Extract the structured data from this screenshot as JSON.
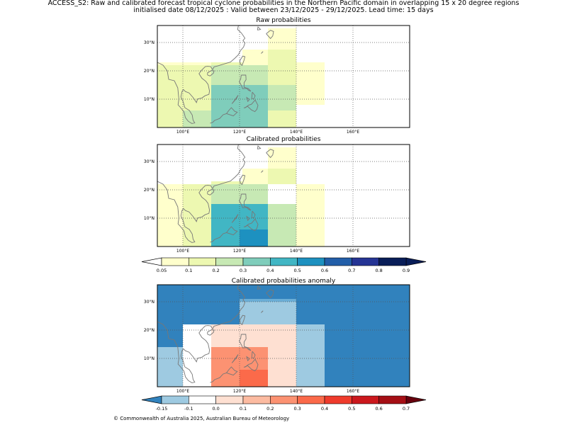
{
  "header": {
    "line1": "ACCESS_S2: Raw and calibrated forecast tropical cyclone probabilities in the Northern Pacific domain in overlapping 15 x 20 degree regions",
    "line2": "initialised date 08/12/2025 :  Valid between 23/12/2025 - 29/12/2025. Lead time: 15 days"
  },
  "footer": {
    "copyright": "© Commonwealth of Australia 2025, Australian Bureau of Meteorology"
  },
  "colors": {
    "land_outline": "#777777",
    "frame": "#000000",
    "grid": "#555555"
  },
  "chart_data": [
    {
      "type": "heatmap",
      "title": "Raw probabilities",
      "lon_range": [
        91,
        180
      ],
      "lat_range": [
        0,
        36
      ],
      "x_ticks": [
        "100°E",
        "120°E",
        "140°E",
        "160°E"
      ],
      "x_tick_values": [
        100,
        120,
        140,
        160
      ],
      "y_ticks": [
        "10°N",
        "20°N",
        "30°N"
      ],
      "y_tick_values": [
        10,
        20,
        30
      ],
      "cells": [
        {
          "lon": [
            130,
            140
          ],
          "lat": [
            27.5,
            35
          ],
          "color": "#ffffcc"
        },
        {
          "lon": [
            121,
            130
          ],
          "lat": [
            22,
            27.5
          ],
          "color": "#ffffcc"
        },
        {
          "lon": [
            91,
            110
          ],
          "lat": [
            22,
            23
          ],
          "color": "#ffffcc"
        },
        {
          "lon": [
            140,
            150
          ],
          "lat": [
            8,
            23
          ],
          "color": "#ffffcc"
        },
        {
          "lon": [
            91,
            100
          ],
          "lat": [
            0,
            22
          ],
          "color": "#edf8b1"
        },
        {
          "lon": [
            100,
            110
          ],
          "lat": [
            6,
            22
          ],
          "color": "#edf8b1"
        },
        {
          "lon": [
            110,
            121
          ],
          "lat": [
            22,
            23
          ],
          "color": "#edf8b1"
        },
        {
          "lon": [
            130,
            140
          ],
          "lat": [
            22,
            27.5
          ],
          "color": "#edf8b1"
        },
        {
          "lon": [
            130,
            140
          ],
          "lat": [
            15,
            22
          ],
          "color": "#edf8b1"
        },
        {
          "lon": [
            130,
            140
          ],
          "lat": [
            0,
            6
          ],
          "color": "#edf8b1"
        },
        {
          "lon": [
            110,
            121
          ],
          "lat": [
            15,
            22
          ],
          "color": "#c7e9b4"
        },
        {
          "lon": [
            121,
            130
          ],
          "lat": [
            15,
            22
          ],
          "color": "#c7e9b4"
        },
        {
          "lon": [
            130,
            140
          ],
          "lat": [
            6,
            15
          ],
          "color": "#c7e9b4"
        },
        {
          "lon": [
            100,
            110
          ],
          "lat": [
            0,
            6
          ],
          "color": "#c7e9b4"
        },
        {
          "lon": [
            110,
            130
          ],
          "lat": [
            0,
            15
          ],
          "color": "#7fcdbb"
        }
      ]
    },
    {
      "type": "heatmap",
      "title": "Calibrated probabilities",
      "lon_range": [
        91,
        180
      ],
      "lat_range": [
        0,
        36
      ],
      "x_ticks": [
        "100°E",
        "120°E",
        "140°E",
        "160°E"
      ],
      "x_tick_values": [
        100,
        120,
        140,
        160
      ],
      "y_ticks": [
        "10°N",
        "20°N",
        "30°N"
      ],
      "y_tick_values": [
        10,
        20,
        30
      ],
      "cells": [
        {
          "lon": [
            130,
            140
          ],
          "lat": [
            27.5,
            35
          ],
          "color": "#ffffcc"
        },
        {
          "lon": [
            121,
            130
          ],
          "lat": [
            22,
            27.5
          ],
          "color": "#ffffcc"
        },
        {
          "lon": [
            140,
            150
          ],
          "lat": [
            0,
            22
          ],
          "color": "#ffffcc"
        },
        {
          "lon": [
            91,
            100
          ],
          "lat": [
            0,
            22
          ],
          "color": "#ffffcc"
        },
        {
          "lon": [
            100,
            110
          ],
          "lat": [
            0,
            22
          ],
          "color": "#edf8b1"
        },
        {
          "lon": [
            110,
            121
          ],
          "lat": [
            22,
            23
          ],
          "color": "#edf8b1"
        },
        {
          "lon": [
            130,
            140
          ],
          "lat": [
            22,
            27.5
          ],
          "color": "#edf8b1"
        },
        {
          "lon": [
            110,
            130
          ],
          "lat": [
            15,
            22
          ],
          "color": "#c7e9b4"
        },
        {
          "lon": [
            130,
            140
          ],
          "lat": [
            0,
            15
          ],
          "color": "#c7e9b4"
        },
        {
          "lon": [
            110,
            130
          ],
          "lat": [
            0,
            15
          ],
          "color": "#41b6c4"
        },
        {
          "lon": [
            120,
            130
          ],
          "lat": [
            0,
            6
          ],
          "color": "#1d91c0"
        }
      ]
    },
    {
      "type": "heatmap",
      "title": "Calibrated probabilities anomaly",
      "lon_range": [
        91,
        180
      ],
      "lat_range": [
        0,
        36
      ],
      "x_ticks": [
        "100°E",
        "120°E",
        "140°E",
        "160°E"
      ],
      "x_tick_values": [
        100,
        120,
        140,
        160
      ],
      "y_ticks": [
        "10°N",
        "20°N",
        "30°N"
      ],
      "y_tick_values": [
        10,
        20,
        30
      ],
      "background_color": "#3182bd",
      "cells": [
        {
          "lon": [
            120,
            140
          ],
          "lat": [
            30,
            31
          ],
          "color": "#6baed6"
        },
        {
          "lon": [
            120,
            140
          ],
          "lat": [
            22,
            30
          ],
          "color": "#9ecae1"
        },
        {
          "lon": [
            140,
            150
          ],
          "lat": [
            0,
            22
          ],
          "color": "#9ecae1"
        },
        {
          "lon": [
            91,
            100
          ],
          "lat": [
            0,
            14
          ],
          "color": "#9ecae1"
        },
        {
          "lon": [
            100,
            110
          ],
          "lat": [
            0,
            22
          ],
          "color": "#ffffff"
        },
        {
          "lon": [
            110,
            130
          ],
          "lat": [
            14,
            22
          ],
          "color": "#fee0d2"
        },
        {
          "lon": [
            130,
            140
          ],
          "lat": [
            0,
            22
          ],
          "color": "#fee0d2"
        },
        {
          "lon": [
            110,
            130
          ],
          "lat": [
            0,
            14
          ],
          "color": "#fc9272"
        },
        {
          "lon": [
            120,
            130
          ],
          "lat": [
            0,
            6
          ],
          "color": "#fb6a4a"
        }
      ]
    }
  ],
  "colorbars": {
    "probability": {
      "labels": [
        "0.05",
        "0.1",
        "0.2",
        "0.3",
        "0.4",
        "0.5",
        "0.6",
        "0.7",
        "0.8",
        "0.9"
      ],
      "colors": [
        "#ffffcc",
        "#edf8b1",
        "#c7e9b4",
        "#7fcdbb",
        "#41b6c4",
        "#1d91c0",
        "#225ea8",
        "#253494",
        "#081d58"
      ],
      "under_color": "#ffffff",
      "over_color": "#081d58"
    },
    "anomaly": {
      "labels": [
        "-0.15",
        "-0.1",
        "0.0",
        "0.1",
        "0.2",
        "0.3",
        "0.4",
        "0.5",
        "0.6",
        "0.7"
      ],
      "colors": [
        "#9ecae1",
        "#ffffff",
        "#fee0d2",
        "#fcbba1",
        "#fc9272",
        "#fb6a4a",
        "#ef3b2c",
        "#cb181d",
        "#a50f15"
      ],
      "under_color": "#3182bd",
      "over_color": "#67000d"
    }
  }
}
